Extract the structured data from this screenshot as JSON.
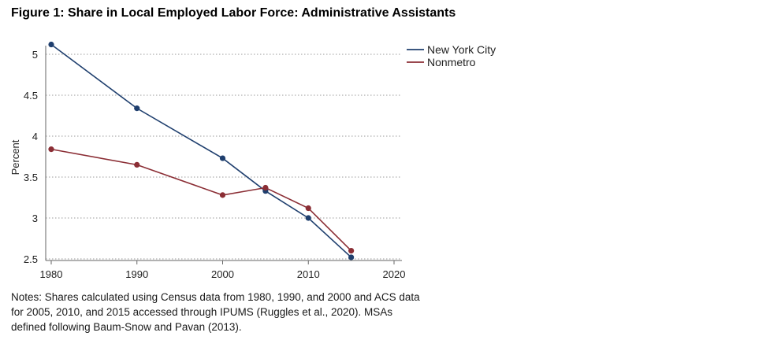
{
  "title": "Figure 1: Share in Local Employed Labor Force: Administrative Assistants",
  "notes": "Notes: Shares calculated using Census data from 1980, 1990, and 2000 and ACS data for 2005, 2010, and 2015 accessed through IPUMS (Ruggles et al., 2020). MSAs defined following Baum-Snow and Pavan (2013).",
  "chart_data": {
    "type": "line",
    "title": "Figure 1: Share in Local Employed Labor Force: Administrative Assistants",
    "xlabel": "",
    "ylabel": "Percent",
    "xlim": [
      1980,
      2020
    ],
    "ylim": [
      2.5,
      5.1
    ],
    "x_ticks": [
      1980,
      1990,
      2000,
      2010,
      2020
    ],
    "y_ticks": [
      2.5,
      3,
      3.5,
      4,
      4.5,
      5
    ],
    "x_tick_labels": [
      "1980",
      "1990",
      "2000",
      "2010",
      "2020"
    ],
    "y_tick_labels": [
      "2.5",
      "3",
      "3.5",
      "4",
      "4.5",
      "5"
    ],
    "grid": "horizontal dotted",
    "legend_position": "top-right outside",
    "series": [
      {
        "name": "New York City",
        "color": "#1f3f6e",
        "x": [
          1980,
          1990,
          2000,
          2005,
          2010,
          2015
        ],
        "y": [
          5.12,
          4.34,
          3.73,
          3.33,
          3.0,
          2.52
        ]
      },
      {
        "name": "Nonmetro",
        "color": "#8b2e35",
        "x": [
          1980,
          1990,
          2000,
          2005,
          2010,
          2015
        ],
        "y": [
          3.84,
          3.65,
          3.28,
          3.37,
          3.12,
          2.6
        ]
      }
    ]
  }
}
